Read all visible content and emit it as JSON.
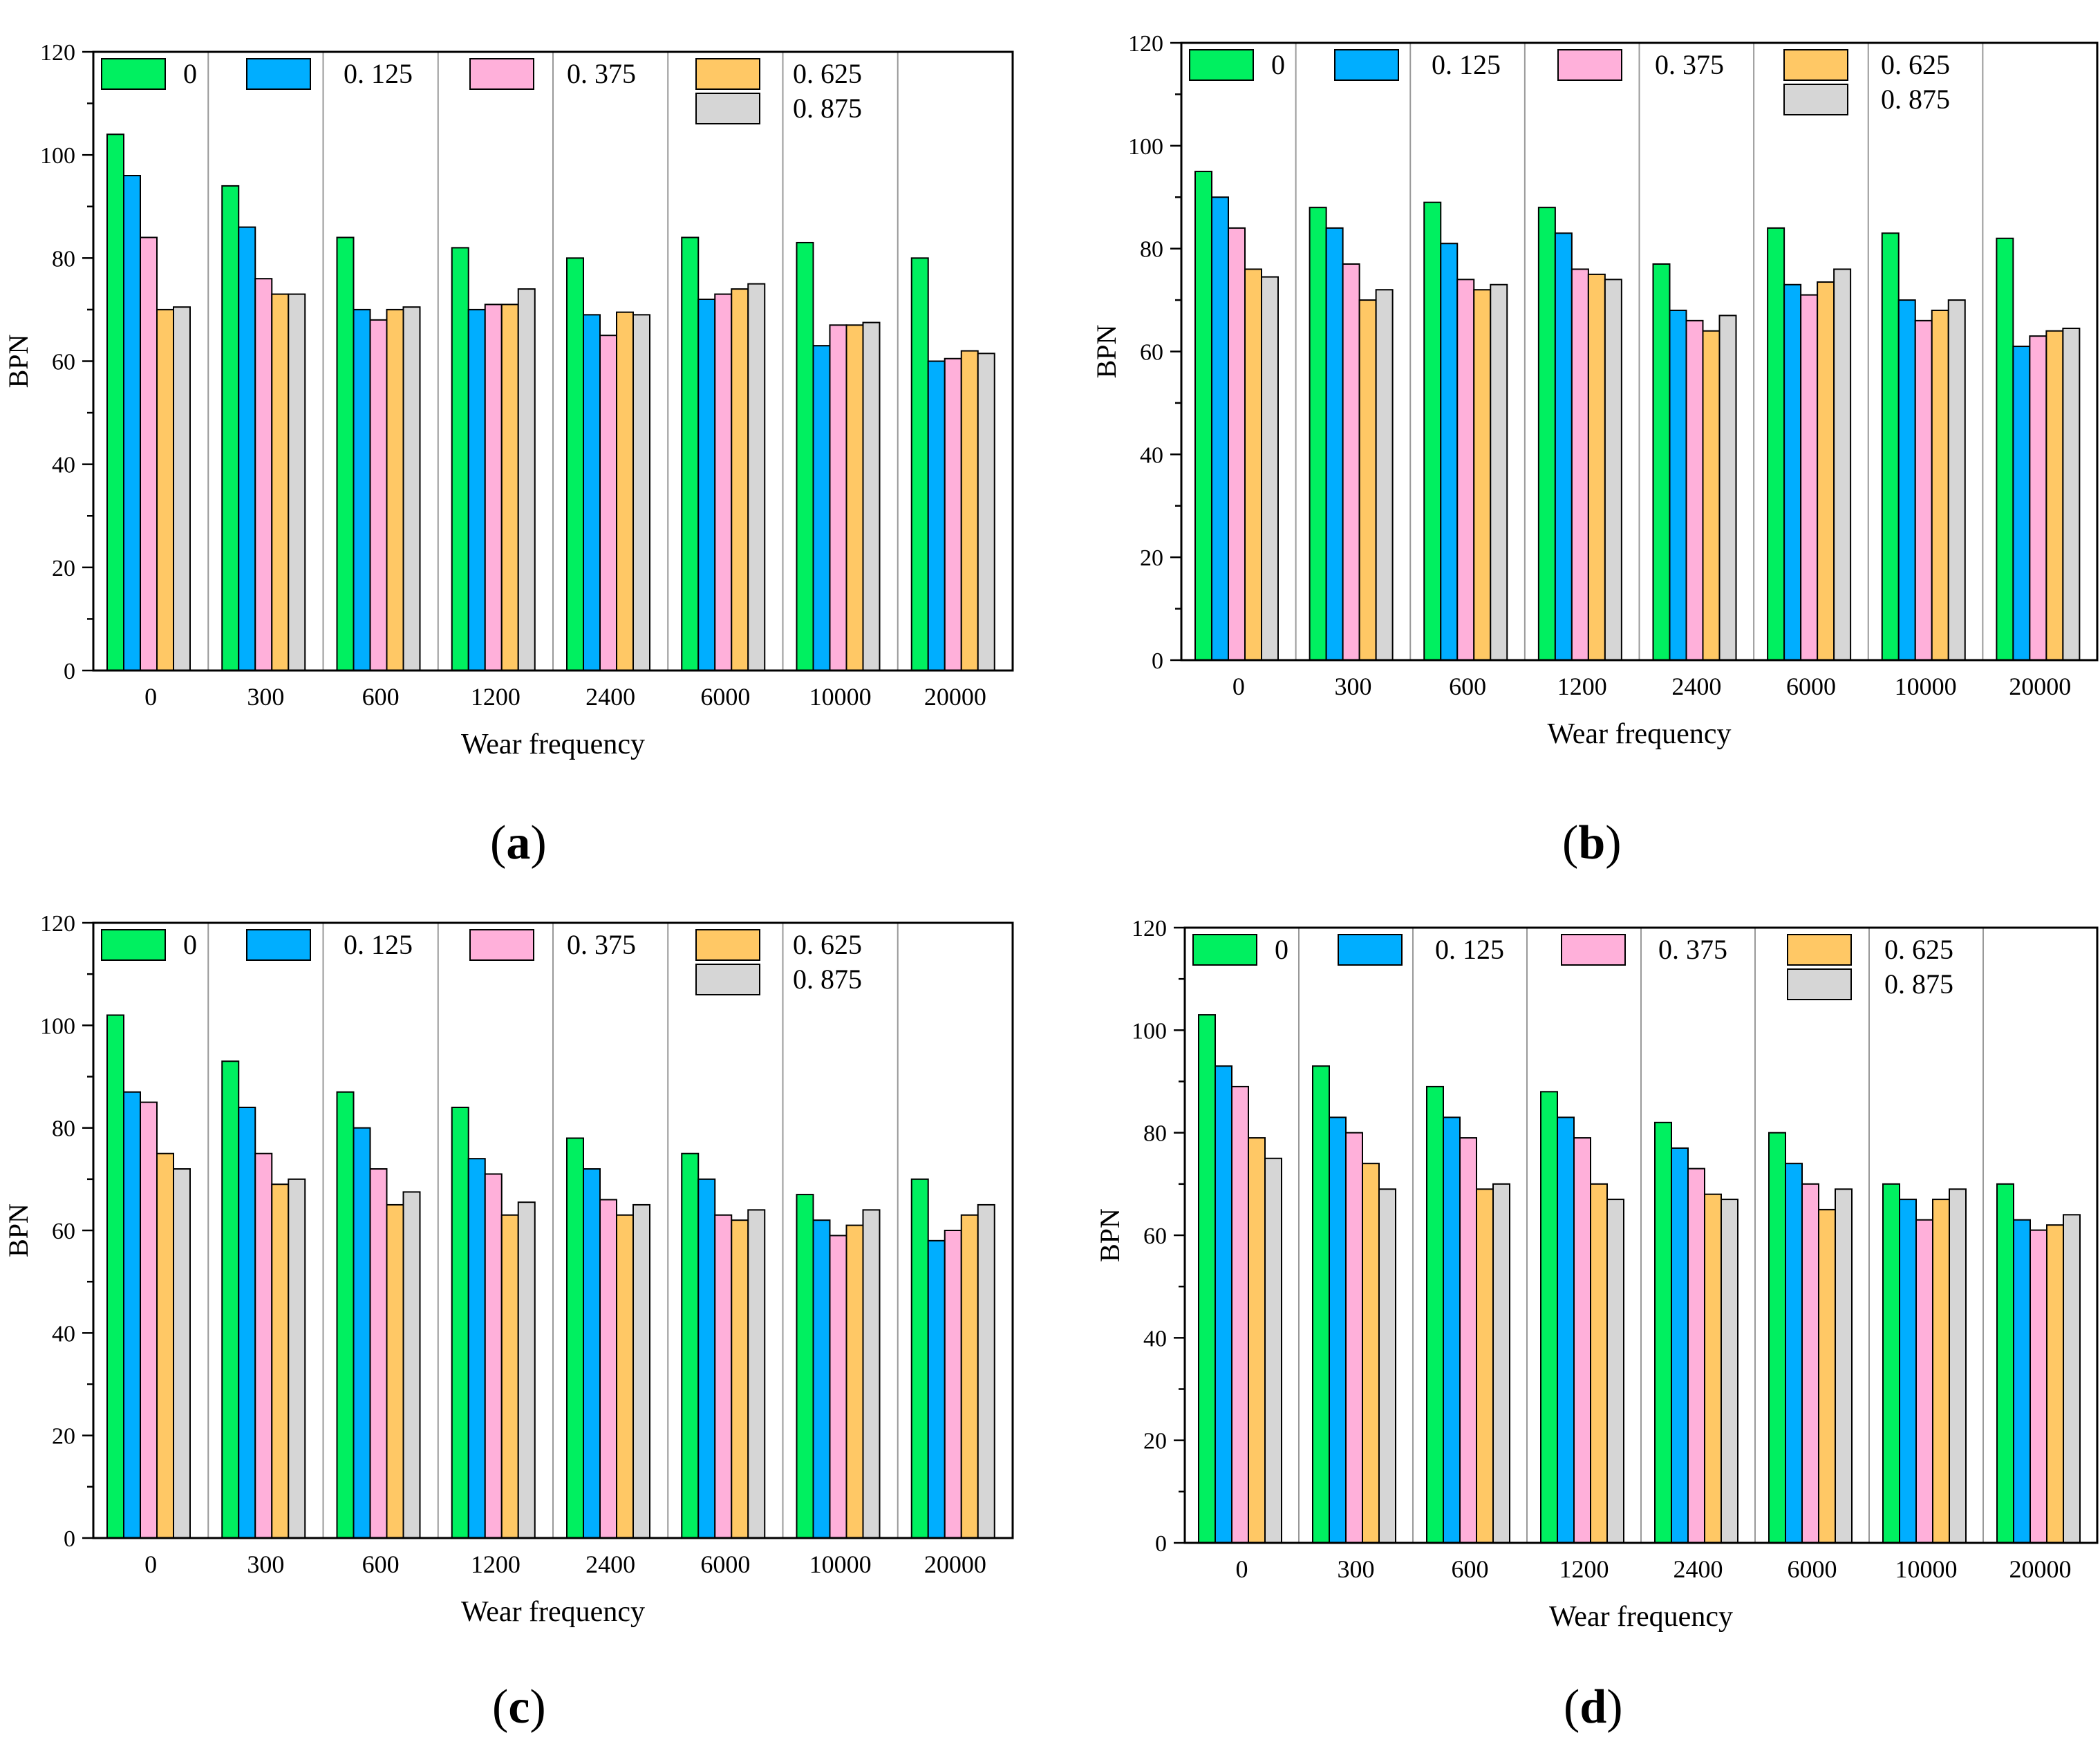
{
  "colors": {
    "0": "#00F060",
    "0.125": "#00AEFF",
    "0.375": "#FFB0DA",
    "0.625": "#FFC865",
    "0.875": "#D6D6D6"
  },
  "chart_data": [
    {
      "type": "bar",
      "caption": "a",
      "ylabel": "BPN",
      "xlabel": "Wear frequency",
      "ylim": [
        0,
        120
      ],
      "yticks": [
        "0",
        "20",
        "40",
        "60",
        "80",
        "100",
        "120"
      ],
      "categories": [
        "0",
        "300",
        "600",
        "1200",
        "2400",
        "6000",
        "10000",
        "20000"
      ],
      "legend": [
        "0",
        "0. 125",
        "0. 375",
        "0. 625",
        "0. 875"
      ],
      "series": [
        {
          "name": "0",
          "values": [
            104,
            94,
            84,
            82,
            80,
            84,
            83,
            80
          ]
        },
        {
          "name": "0.125",
          "values": [
            96,
            86,
            70,
            70,
            69,
            72,
            63,
            60
          ]
        },
        {
          "name": "0.375",
          "values": [
            84,
            76,
            68,
            71,
            65,
            73,
            67,
            60.5
          ]
        },
        {
          "name": "0.625",
          "values": [
            70,
            73,
            70,
            71,
            69.5,
            74,
            67,
            62
          ]
        },
        {
          "name": "0.875",
          "values": [
            70.5,
            73,
            70.5,
            74,
            69,
            75,
            67.5,
            61.5
          ]
        }
      ]
    },
    {
      "type": "bar",
      "caption": "b",
      "ylabel": "BPN",
      "xlabel": "Wear frequency",
      "ylim": [
        0,
        120
      ],
      "yticks": [
        "0",
        "20",
        "40",
        "60",
        "80",
        "100",
        "120"
      ],
      "categories": [
        "0",
        "300",
        "600",
        "1200",
        "2400",
        "6000",
        "10000",
        "20000"
      ],
      "legend": [
        "0",
        "0. 125",
        "0. 375",
        "0. 625",
        "0. 875"
      ],
      "series": [
        {
          "name": "0",
          "values": [
            95,
            88,
            89,
            88,
            77,
            84,
            83,
            82
          ]
        },
        {
          "name": "0.125",
          "values": [
            90,
            84,
            81,
            83,
            68,
            73,
            70,
            61
          ]
        },
        {
          "name": "0.375",
          "values": [
            84,
            77,
            74,
            76,
            66,
            71,
            66,
            63
          ]
        },
        {
          "name": "0.625",
          "values": [
            76,
            70,
            72,
            75,
            64,
            73.5,
            68,
            64
          ]
        },
        {
          "name": "0.875",
          "values": [
            74.5,
            72,
            73,
            74,
            67,
            76,
            70,
            64.5
          ]
        }
      ]
    },
    {
      "type": "bar",
      "caption": "c",
      "ylabel": "BPN",
      "xlabel": "Wear frequency",
      "ylim": [
        0,
        120
      ],
      "yticks": [
        "0",
        "20",
        "40",
        "60",
        "80",
        "100",
        "120"
      ],
      "categories": [
        "0",
        "300",
        "600",
        "1200",
        "2400",
        "6000",
        "10000",
        "20000"
      ],
      "legend": [
        "0",
        "0. 125",
        "0. 375",
        "0. 625",
        "0. 875"
      ],
      "series": [
        {
          "name": "0",
          "values": [
            102,
            93,
            87,
            84,
            78,
            75,
            67,
            70
          ]
        },
        {
          "name": "0.125",
          "values": [
            87,
            84,
            80,
            74,
            72,
            70,
            62,
            58
          ]
        },
        {
          "name": "0.375",
          "values": [
            85,
            75,
            72,
            71,
            66,
            63,
            59,
            60
          ]
        },
        {
          "name": "0.625",
          "values": [
            75,
            69,
            65,
            63,
            63,
            62,
            61,
            63
          ]
        },
        {
          "name": "0.875",
          "values": [
            72,
            70,
            67.5,
            65.5,
            65,
            64,
            64,
            65
          ]
        }
      ]
    },
    {
      "type": "bar",
      "caption": "d",
      "ylabel": "BPN",
      "xlabel": "Wear frequency",
      "ylim": [
        0,
        120
      ],
      "yticks": [
        "0",
        "20",
        "40",
        "60",
        "80",
        "100",
        "120"
      ],
      "categories": [
        "0",
        "300",
        "600",
        "1200",
        "2400",
        "6000",
        "10000",
        "20000"
      ],
      "legend": [
        "0",
        "0. 125",
        "0. 375",
        "0. 625",
        "0. 875"
      ],
      "series": [
        {
          "name": "0",
          "values": [
            103,
            93,
            89,
            88,
            82,
            80,
            70,
            70
          ]
        },
        {
          "name": "0.125",
          "values": [
            93,
            83,
            83,
            83,
            77,
            74,
            67,
            63
          ]
        },
        {
          "name": "0.375",
          "values": [
            89,
            80,
            79,
            79,
            73,
            70,
            63,
            61
          ]
        },
        {
          "name": "0.625",
          "values": [
            79,
            74,
            69,
            70,
            68,
            65,
            67,
            62
          ]
        },
        {
          "name": "0.875",
          "values": [
            75,
            69,
            70,
            67,
            67,
            69,
            69,
            64
          ]
        }
      ]
    }
  ]
}
